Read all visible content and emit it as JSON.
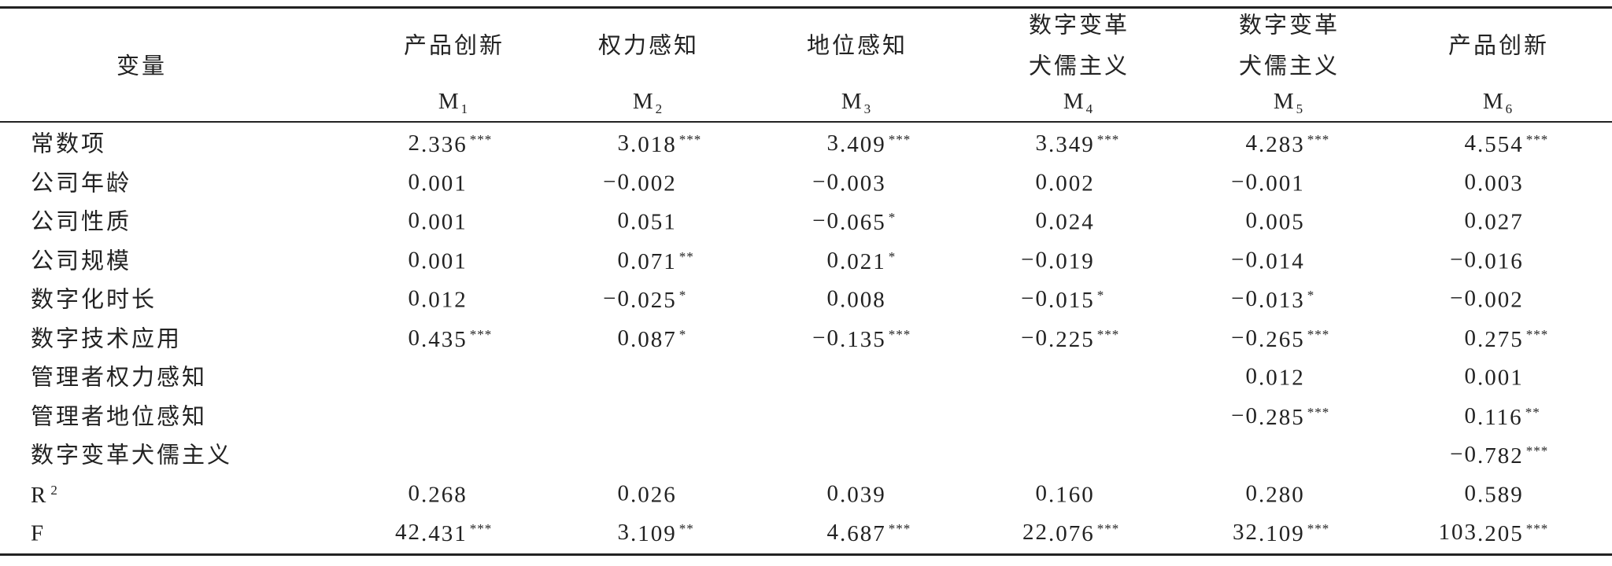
{
  "table": {
    "corner": "变量",
    "columns": [
      {
        "title": [
          "产品创新"
        ],
        "model": "M",
        "sub": "1"
      },
      {
        "title": [
          "权力感知"
        ],
        "model": "M",
        "sub": "2"
      },
      {
        "title": [
          "地位感知"
        ],
        "model": "M",
        "sub": "3"
      },
      {
        "title": [
          "数字变革",
          "犬儒主义"
        ],
        "model": "M",
        "sub": "4"
      },
      {
        "title": [
          "数字变革",
          "犬儒主义"
        ],
        "model": "M",
        "sub": "5"
      },
      {
        "title": [
          "产品创新"
        ],
        "model": "M",
        "sub": "6"
      }
    ],
    "rows": [
      {
        "label": "常数项",
        "cells": [
          {
            "value": "2.336",
            "sig": "***"
          },
          {
            "value": "3.018",
            "sig": "***"
          },
          {
            "value": "3.409",
            "sig": "***"
          },
          {
            "value": "3.349",
            "sig": "***"
          },
          {
            "value": "4.283",
            "sig": "***"
          },
          {
            "value": "4.554",
            "sig": "***"
          }
        ]
      },
      {
        "label": "公司年龄",
        "cells": [
          {
            "value": "0.001"
          },
          {
            "value": "−0.002"
          },
          {
            "value": "−0.003"
          },
          {
            "value": "0.002"
          },
          {
            "value": "−0.001"
          },
          {
            "value": "0.003"
          }
        ]
      },
      {
        "label": "公司性质",
        "cells": [
          {
            "value": "0.001"
          },
          {
            "value": "0.051"
          },
          {
            "value": "−0.065",
            "sig": "*"
          },
          {
            "value": "0.024"
          },
          {
            "value": "0.005"
          },
          {
            "value": "0.027"
          }
        ]
      },
      {
        "label": "公司规模",
        "cells": [
          {
            "value": "0.001"
          },
          {
            "value": "0.071",
            "sig": "**"
          },
          {
            "value": "0.021",
            "sig": "*"
          },
          {
            "value": "−0.019"
          },
          {
            "value": "−0.014"
          },
          {
            "value": "−0.016"
          }
        ]
      },
      {
        "label": "数字化时长",
        "cells": [
          {
            "value": "0.012"
          },
          {
            "value": "−0.025",
            "sig": "*"
          },
          {
            "value": "0.008"
          },
          {
            "value": "−0.015",
            "sig": "*"
          },
          {
            "value": "−0.013",
            "sig": "*"
          },
          {
            "value": "−0.002"
          }
        ]
      },
      {
        "label": "数字技术应用",
        "cells": [
          {
            "value": "0.435",
            "sig": "***"
          },
          {
            "value": "0.087",
            "sig": "*"
          },
          {
            "value": "−0.135",
            "sig": "***"
          },
          {
            "value": "−0.225",
            "sig": "***"
          },
          {
            "value": "−0.265",
            "sig": "***"
          },
          {
            "value": "0.275",
            "sig": "***"
          }
        ]
      },
      {
        "label": "管理者权力感知",
        "cells": [
          null,
          null,
          null,
          null,
          {
            "value": "0.012"
          },
          {
            "value": "0.001"
          }
        ]
      },
      {
        "label": "管理者地位感知",
        "cells": [
          null,
          null,
          null,
          null,
          {
            "value": "−0.285",
            "sig": "***"
          },
          {
            "value": "0.116",
            "sig": "**"
          }
        ]
      },
      {
        "label": "数字变革犬儒主义",
        "cells": [
          null,
          null,
          null,
          null,
          null,
          {
            "value": "−0.782",
            "sig": "***"
          }
        ]
      },
      {
        "label": "R",
        "label_sup": "2",
        "cells": [
          {
            "value": "0.268"
          },
          {
            "value": "0.026"
          },
          {
            "value": "0.039"
          },
          {
            "value": "0.160"
          },
          {
            "value": "0.280"
          },
          {
            "value": "0.589"
          }
        ]
      },
      {
        "label": "F",
        "cells": [
          {
            "value": "42.431",
            "sig": "***"
          },
          {
            "value": "3.109",
            "sig": "**"
          },
          {
            "value": "4.687",
            "sig": "***"
          },
          {
            "value": "22.076",
            "sig": "***"
          },
          {
            "value": "32.109",
            "sig": "***"
          },
          {
            "value": "103.205",
            "sig": "***"
          }
        ]
      }
    ]
  }
}
